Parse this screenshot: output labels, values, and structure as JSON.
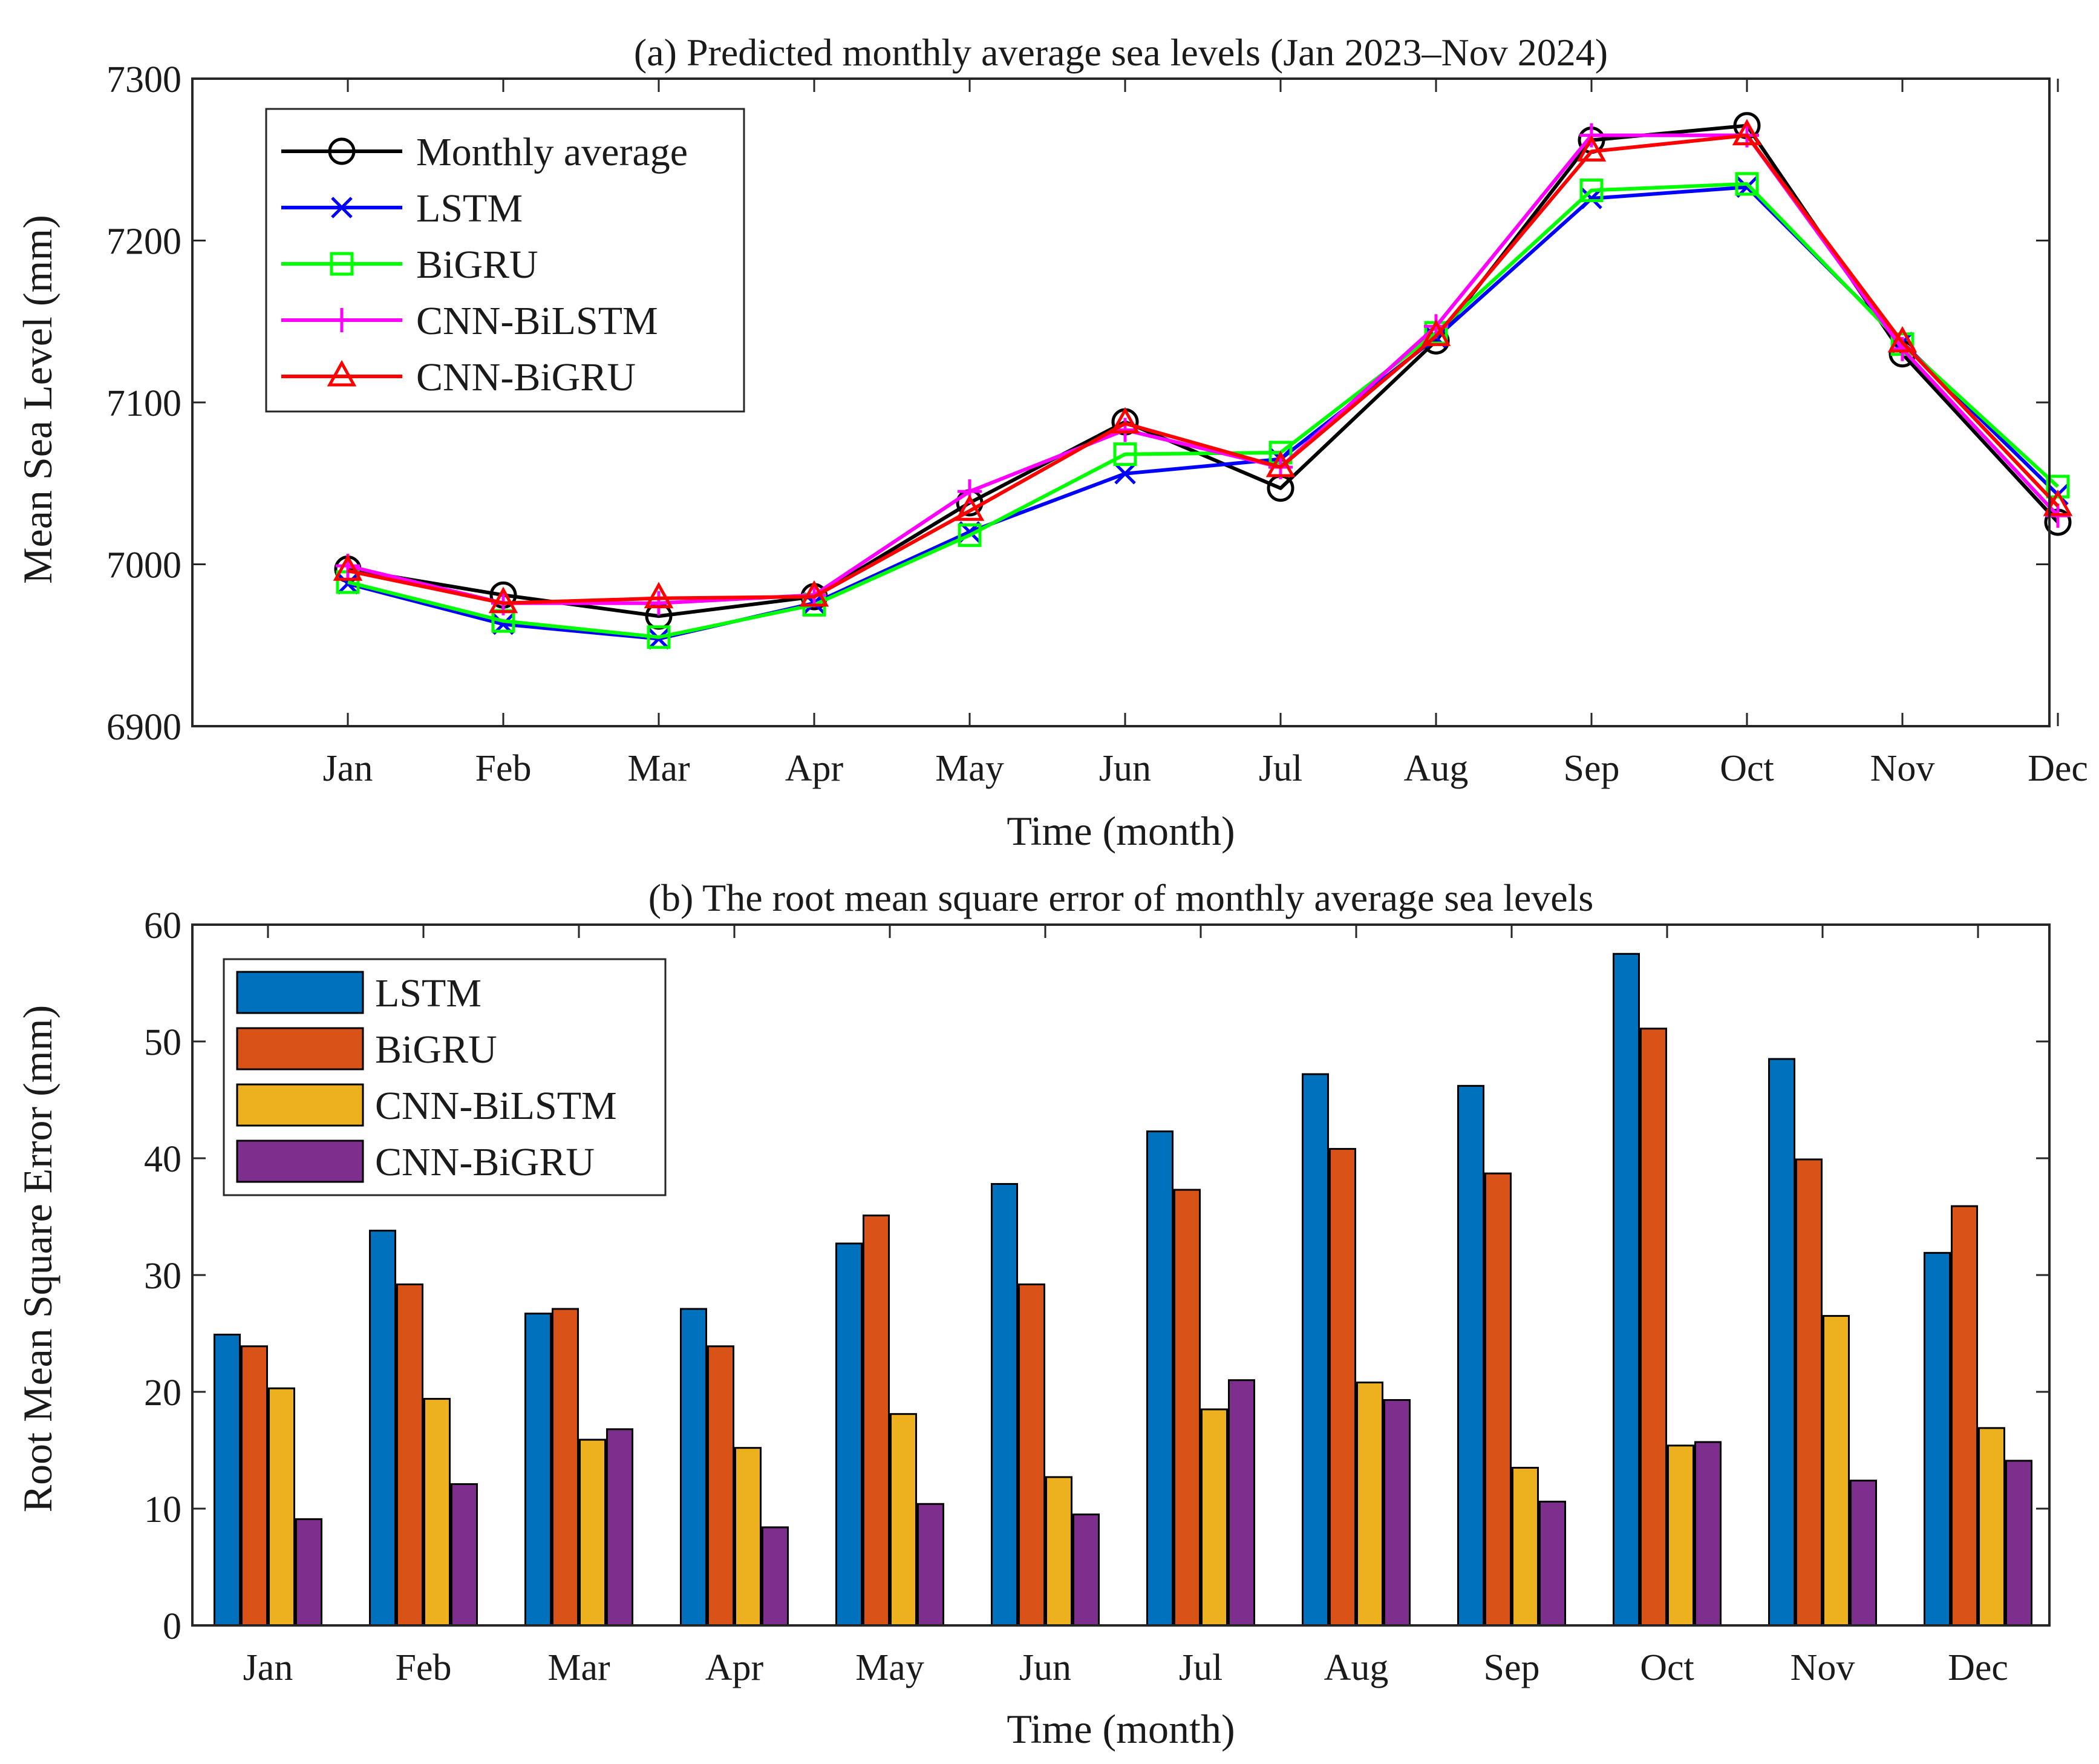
{
  "chart_data": [
    {
      "type": "line",
      "title": "(a) Predicted monthly average sea levels (Jan 2023–Nov 2024)",
      "xlabel": "Time (month)",
      "ylabel": "Mean Sea Level (mm)",
      "ylim": [
        6900,
        7300
      ],
      "yticks": [
        6900,
        7000,
        7100,
        7200,
        7300
      ],
      "categories": [
        "Jan",
        "Feb",
        "Mar",
        "Apr",
        "May",
        "Jun",
        "Jul",
        "Aug",
        "Sep",
        "Oct",
        "Nov",
        "Dec"
      ],
      "legend_position": "top-left",
      "series": [
        {
          "name": "Monthly average",
          "color": "#000000",
          "marker": "circle",
          "values": [
            6997,
            6981,
            6968,
            6980,
            7038,
            7088,
            7047,
            7138,
            7262,
            7271,
            7130,
            7026
          ]
        },
        {
          "name": "LSTM",
          "color": "#0000ff",
          "marker": "x",
          "values": [
            6988,
            6963,
            6954,
            6976,
            7020,
            7056,
            7065,
            7140,
            7226,
            7233,
            7137,
            7043
          ]
        },
        {
          "name": "BiGRU",
          "color": "#00ff00",
          "marker": "square",
          "values": [
            6989,
            6965,
            6955,
            6975,
            7018,
            7068,
            7069,
            7143,
            7231,
            7235,
            7136,
            7048
          ]
        },
        {
          "name": "CNN-BiLSTM",
          "color": "#ff00ff",
          "marker": "plus",
          "values": [
            6999,
            6976,
            6976,
            6981,
            7045,
            7083,
            7060,
            7147,
            7265,
            7265,
            7133,
            7030
          ]
        },
        {
          "name": "CNN-BiGRU",
          "color": "#ff0000",
          "marker": "triangle",
          "values": [
            6996,
            6976,
            6979,
            6980,
            7033,
            7087,
            7060,
            7141,
            7255,
            7265,
            7137,
            7036
          ]
        }
      ]
    },
    {
      "type": "bar",
      "title": "(b) The root mean square error of monthly average sea levels",
      "xlabel": "Time (month)",
      "ylabel": "Root Mean Square Error (mm)",
      "ylim": [
        0,
        60
      ],
      "yticks": [
        0,
        10,
        20,
        30,
        40,
        50,
        60
      ],
      "categories": [
        "Jan",
        "Feb",
        "Mar",
        "Apr",
        "May",
        "Jun",
        "Jul",
        "Aug",
        "Sep",
        "Oct",
        "Nov",
        "Dec"
      ],
      "legend_position": "top-left",
      "series": [
        {
          "name": "LSTM",
          "color": "#0072bd",
          "values": [
            24.9,
            33.8,
            26.7,
            27.1,
            32.7,
            37.8,
            42.3,
            47.2,
            46.2,
            57.5,
            48.5,
            31.9
          ]
        },
        {
          "name": "BiGRU",
          "color": "#d95319",
          "values": [
            23.9,
            29.2,
            27.1,
            23.9,
            35.1,
            29.2,
            37.3,
            40.8,
            38.7,
            51.1,
            39.9,
            35.9
          ]
        },
        {
          "name": "CNN-BiLSTM",
          "color": "#edb120",
          "values": [
            20.3,
            19.4,
            15.9,
            15.2,
            18.1,
            12.7,
            18.5,
            20.8,
            13.5,
            15.4,
            26.5,
            16.9
          ]
        },
        {
          "name": "CNN-BiGRU",
          "color": "#7e2f8e",
          "values": [
            9.1,
            12.1,
            16.8,
            8.4,
            10.4,
            9.5,
            21.0,
            19.3,
            10.6,
            15.7,
            12.4,
            14.1
          ]
        }
      ]
    }
  ]
}
